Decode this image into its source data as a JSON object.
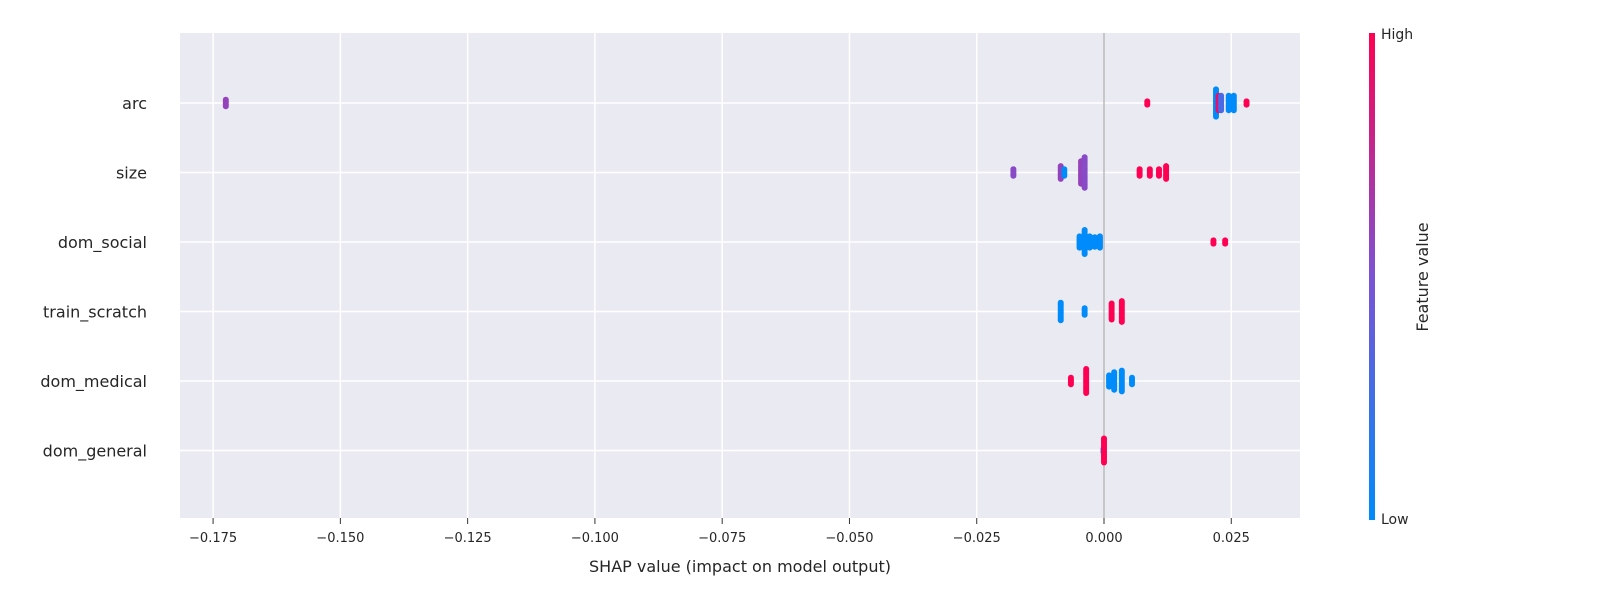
{
  "chart_data": {
    "type": "scatter",
    "title": "",
    "xlabel": "SHAP value (impact on model output)",
    "xlim": [
      -0.1815,
      0.0385
    ],
    "xticks": [
      -0.175,
      -0.15,
      -0.125,
      -0.1,
      -0.075,
      -0.05,
      -0.025,
      0.0,
      0.025
    ],
    "xtick_labels": [
      "−0.175",
      "−0.150",
      "−0.125",
      "−0.100",
      "−0.075",
      "−0.050",
      "−0.025",
      "0.000",
      "0.025"
    ],
    "grid": true,
    "zero_line": 0,
    "colors": {
      "low": "#008bfb",
      "mid": "#7c52d4",
      "high": "#ff0052",
      "background": "#eaeaf2",
      "grid": "#ffffff"
    },
    "colorbar": {
      "label": "Feature value",
      "high_label": "High",
      "low_label": "Low"
    },
    "features": [
      {
        "name": "arc",
        "groups": [
          {
            "x": -0.1725,
            "value": 0.6,
            "count": 5
          },
          {
            "x": 0.0085,
            "value": 1.0,
            "count": 3
          },
          {
            "x": 0.022,
            "value": 0.0,
            "count": 18
          },
          {
            "x": 0.0225,
            "value": 0.9,
            "count": 10
          },
          {
            "x": 0.023,
            "value": 0.3,
            "count": 10
          },
          {
            "x": 0.0245,
            "value": 0.0,
            "count": 10
          },
          {
            "x": 0.0255,
            "value": 0.0,
            "count": 10
          },
          {
            "x": 0.028,
            "value": 1.0,
            "count": 3
          }
        ]
      },
      {
        "name": "size",
        "groups": [
          {
            "x": -0.0178,
            "value": 0.55,
            "count": 5
          },
          {
            "x": -0.0085,
            "value": 0.6,
            "count": 9
          },
          {
            "x": -0.0078,
            "value": 0.0,
            "count": 5
          },
          {
            "x": -0.0045,
            "value": 0.6,
            "count": 15
          },
          {
            "x": -0.0038,
            "value": 0.55,
            "count": 20
          },
          {
            "x": 0.007,
            "value": 1.0,
            "count": 5
          },
          {
            "x": 0.009,
            "value": 1.0,
            "count": 5
          },
          {
            "x": 0.0108,
            "value": 1.0,
            "count": 5
          },
          {
            "x": 0.0122,
            "value": 1.0,
            "count": 9
          }
        ]
      },
      {
        "name": "dom_social",
        "groups": [
          {
            "x": -0.0048,
            "value": 0.0,
            "count": 8
          },
          {
            "x": -0.0038,
            "value": 0.0,
            "count": 16
          },
          {
            "x": -0.0028,
            "value": 0.0,
            "count": 8
          },
          {
            "x": -0.0018,
            "value": 0.0,
            "count": 7
          },
          {
            "x": -0.0008,
            "value": 0.0,
            "count": 8
          },
          {
            "x": 0.0215,
            "value": 1.0,
            "count": 3
          },
          {
            "x": 0.0238,
            "value": 1.0,
            "count": 3
          }
        ]
      },
      {
        "name": "train_scratch",
        "groups": [
          {
            "x": -0.0085,
            "value": 0.0,
            "count": 12
          },
          {
            "x": -0.0038,
            "value": 0.0,
            "count": 5
          },
          {
            "x": 0.0015,
            "value": 1.0,
            "count": 11
          },
          {
            "x": 0.0035,
            "value": 1.0,
            "count": 14
          }
        ]
      },
      {
        "name": "dom_medical",
        "groups": [
          {
            "x": -0.0065,
            "value": 1.0,
            "count": 5
          },
          {
            "x": -0.0035,
            "value": 1.0,
            "count": 16
          },
          {
            "x": 0.001,
            "value": 0.0,
            "count": 8
          },
          {
            "x": 0.002,
            "value": 0.0,
            "count": 12
          },
          {
            "x": 0.0035,
            "value": 0.0,
            "count": 14
          },
          {
            "x": 0.0055,
            "value": 0.0,
            "count": 5
          }
        ]
      },
      {
        "name": "dom_general",
        "groups": [
          {
            "x": -0.0001,
            "value": 0.0,
            "count": 3
          },
          {
            "x": 0.0,
            "value": 1.0,
            "count": 16
          }
        ]
      }
    ]
  }
}
